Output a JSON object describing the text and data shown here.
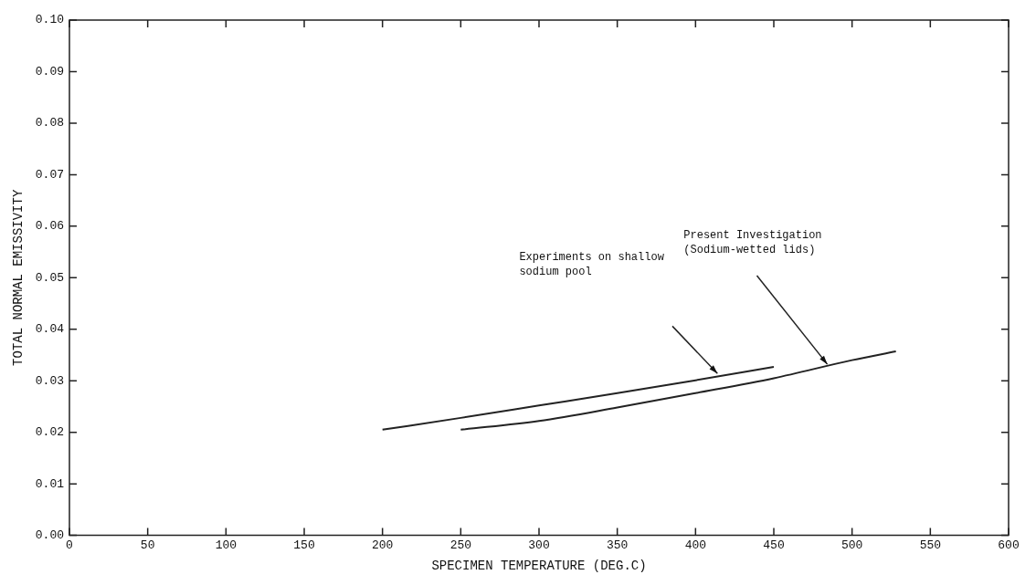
{
  "chart_data": {
    "type": "line",
    "xlabel": "SPECIMEN TEMPERATURE (DEG.C)",
    "ylabel": "TOTAL NORMAL EMISSIVITY",
    "xlim": [
      0,
      600
    ],
    "xticks": [
      0,
      50,
      100,
      150,
      200,
      250,
      300,
      350,
      400,
      450,
      500,
      550,
      600
    ],
    "ylim": [
      0,
      0.1
    ],
    "yticks": [
      {
        "value": 0,
        "label": "0.00"
      },
      0.01,
      0.02,
      0.03,
      0.04,
      0.05,
      0.06,
      0.07,
      0.08,
      0.09,
      {
        "value": 0.1,
        "label": "0.10"
      }
    ],
    "grid": false,
    "legend": false,
    "marker": "none",
    "line_style": "solid",
    "series": [
      {
        "color": "#222222",
        "x": [
          200,
          250,
          300,
          350,
          400,
          450
        ],
        "values": [
          0.0205,
          0.0228,
          0.0252,
          0.0276,
          0.0301,
          0.0327
        ]
      },
      {
        "color": "#222222",
        "x": [
          250,
          300,
          350,
          400,
          450,
          500,
          528
        ],
        "values": [
          0.0205,
          0.0222,
          0.0248,
          0.0276,
          0.0305,
          0.034,
          0.0357
        ]
      }
    ],
    "annotations": [
      "Experiments on shallow\nsodium pool",
      "Present Investigation\n(Sodium-wetted lids)"
    ]
  }
}
